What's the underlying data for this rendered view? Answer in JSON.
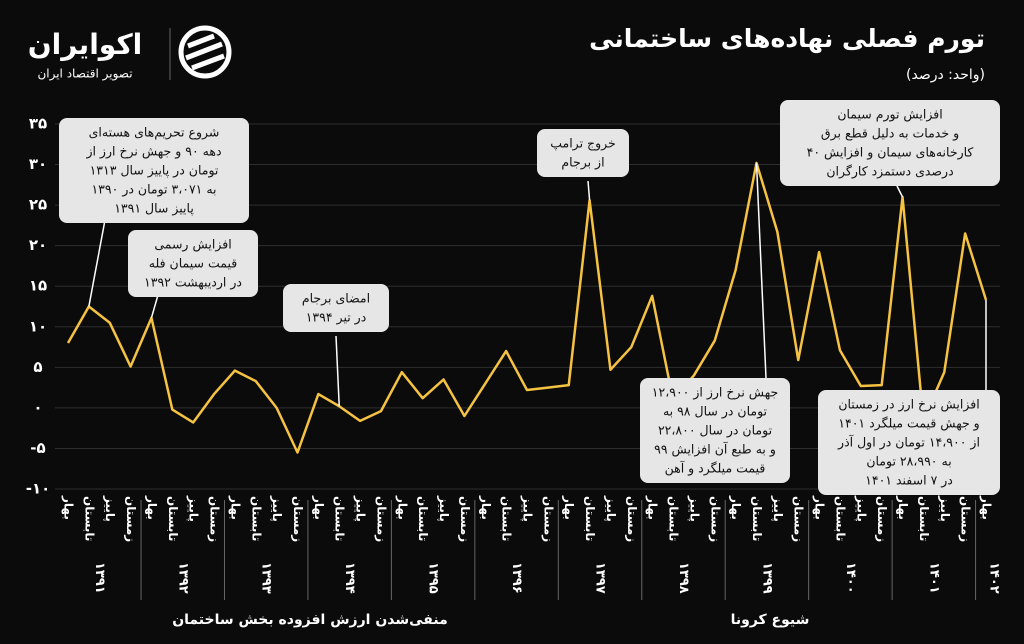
{
  "brand": {
    "name": "اکوایران",
    "tagline": "تصویر اقتصاد ایران"
  },
  "chart_data": {
    "type": "line",
    "title": "تورم فصلی نهاده‌های ساختمانی",
    "subtitle": "(واحد: درصد)",
    "categories": [
      "بهار",
      "تابستان",
      "پاییز",
      "زمستان",
      "بهار",
      "تابستان",
      "پاییز",
      "زمستان",
      "بهار",
      "تابستان",
      "پاییز",
      "زمستان",
      "بهار",
      "تابستان",
      "پاییز",
      "زمستان",
      "بهار",
      "تابستان",
      "پاییز",
      "زمستان",
      "بهار",
      "تابستان",
      "پاییز",
      "زمستان",
      "بهار",
      "تابستان",
      "پاییز",
      "زمستان",
      "بهار",
      "تابستان",
      "پاییز",
      "زمستان",
      "بهار",
      "تابستان",
      "پاییز",
      "زمستان",
      "بهار",
      "تابستان",
      "پاییز",
      "زمستان",
      "بهار",
      "تابستان",
      "پاییز",
      "زمستان",
      "بهار"
    ],
    "year_labels": [
      "۱۳۹۱",
      "۱۳۹۲",
      "۱۳۹۳",
      "۱۳۹۴",
      "۱۳۹۵",
      "۱۳۹۶",
      "۱۳۹۷",
      "۱۳۹۸",
      "۱۳۹۹",
      "۱۴۰۰",
      "۱۴۰۱",
      "۱۴۰۲"
    ],
    "values": [
      8,
      12.5,
      10.5,
      5.1,
      11.1,
      -0.2,
      -1.8,
      1.7,
      4.6,
      3.3,
      0,
      -5.5,
      1.7,
      0.2,
      -1.6,
      -0.4,
      4.4,
      1.2,
      3.5,
      -1,
      3,
      7,
      2.2,
      2.5,
      2.8,
      25.6,
      4.7,
      7.5,
      13.8,
      1,
      4,
      8.3,
      17,
      30.2,
      21.7,
      5.9,
      19.2,
      7.1,
      2.7,
      2.8,
      26,
      -1.5,
      4.4,
      21.5,
      13.3
    ],
    "color": "#f5c242",
    "ylim": [
      -10,
      35
    ],
    "yticks": [
      {
        "value": -10,
        "label": "-۱۰"
      },
      {
        "value": -5,
        "label": "-۵"
      },
      {
        "value": 0,
        "label": "۰"
      },
      {
        "value": 5,
        "label": "۵"
      },
      {
        "value": 10,
        "label": "۱۰"
      },
      {
        "value": 15,
        "label": "۱۵"
      },
      {
        "value": 20,
        "label": "۲۰"
      },
      {
        "value": 25,
        "label": "۲۵"
      },
      {
        "value": 30,
        "label": "۳۰"
      },
      {
        "value": 35,
        "label": "۳۵"
      }
    ],
    "grid": true,
    "annotations": [
      [
        "شروع تحریم‌های هسته‌ای",
        "دهه ۹۰ و جهش نرخ ارز از",
        "۱۳۱۳ تومان در پاییز سال",
        "۱۳۹۰ به ۳،۰۷۱ تومان در",
        "پاییز سال ۱۳۹۱"
      ],
      [
        "افزایش رسمی",
        "قیمت سیمان فله",
        "در اردیبهشت ۱۳۹۲"
      ],
      [
        "امضای برجام",
        "در تیر ۱۳۹۴"
      ],
      [
        "خروج ترامپ",
        "از برجام"
      ],
      [
        "افزایش تورم سیمان",
        "و خدمات به دلیل قطع برق",
        "کارخانه‌های سیمان و افزایش ۴۰",
        "درصدی دستمزد کارگران"
      ],
      [
        "جهش نرخ ارز از ۱۲،۹۰۰",
        "تومان در سال ۹۸ به",
        "۲۲،۸۰۰ تومان در سال",
        "۹۹ و به طبع آن افزایش",
        "قیمت میلگرد و آهن"
      ],
      [
        "افزایش نرخ ارز در زمستان",
        "۱۴۰۱ و جهش قیمت میلگرد",
        "از ۱۴،۹۰۰ تومان در اول آذر",
        "به ۲۸،۹۹۰ تومان",
        "در ۷ اسفند ۱۴۰۱"
      ]
    ],
    "period_labels": [
      "منفی‌شدن ارزش افزوده بخش ساختمان",
      "شیوع کرونا"
    ]
  }
}
